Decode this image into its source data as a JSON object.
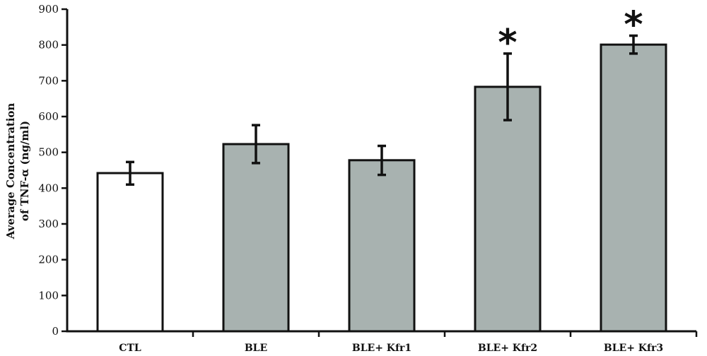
{
  "chart_data": {
    "type": "bar",
    "title": "",
    "xlabel": "",
    "ylabel_line1": "Average Concentration",
    "ylabel_line2": "of TNF-α (ng/ml)",
    "ylim": [
      0,
      900
    ],
    "yticks": [
      0,
      100,
      200,
      300,
      400,
      500,
      600,
      700,
      800,
      900
    ],
    "grid": false,
    "categories": [
      "CTL",
      "BLE",
      "BLE+ Kfr1",
      "BLE+ Kfr2",
      "BLE+ Kfr3"
    ],
    "values": [
      442,
      523,
      478,
      683,
      801
    ],
    "error_low": [
      410,
      470,
      437,
      590,
      776
    ],
    "error_high": [
      473,
      576,
      518,
      776,
      826
    ],
    "significance": [
      "",
      "",
      "",
      "*",
      "*"
    ],
    "colors": {
      "CTL": "#ffffff",
      "treatment": "#a8b2b0",
      "outline": "#111111"
    }
  }
}
